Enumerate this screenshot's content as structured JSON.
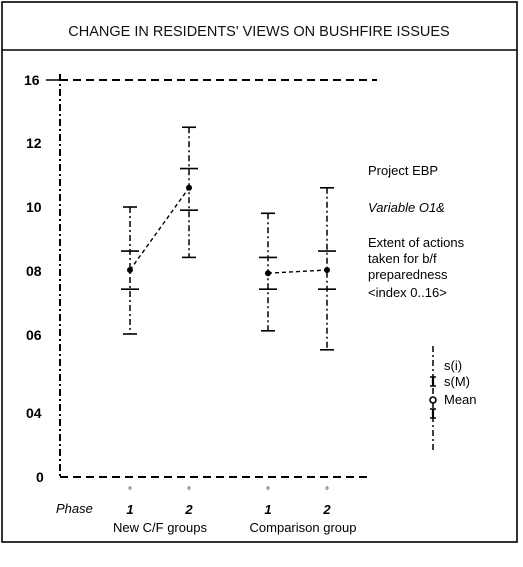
{
  "chart_data": {
    "type": "errorbar",
    "title": "CHANGE IN RESIDENTS' VIEWS ON BUSHFIRE ISSUES",
    "xlabel": "",
    "ylabel": "",
    "y_ticks": [
      "16",
      "12",
      "10",
      "08",
      "06",
      "04",
      "0"
    ],
    "phase_label": "Phase",
    "groups": [
      {
        "name": "New C/F groups",
        "points": [
          {
            "phase": "1",
            "mean": 8.0,
            "sm_low": 7.4,
            "sm_high": 8.6,
            "si_low": 6.0,
            "si_high": 10.0
          },
          {
            "phase": "2",
            "mean": 10.6,
            "sm_low": 9.9,
            "sm_high": 11.2,
            "si_low": 8.4,
            "si_high": 13.0
          }
        ]
      },
      {
        "name": "Comparison group",
        "points": [
          {
            "phase": "1",
            "mean": 7.9,
            "sm_low": 7.4,
            "sm_high": 8.4,
            "si_low": 6.1,
            "si_high": 9.8
          },
          {
            "phase": "2",
            "mean": 8.0,
            "sm_low": 7.4,
            "sm_high": 8.6,
            "si_low": 5.6,
            "si_high": 10.6
          }
        ]
      }
    ],
    "annotation": {
      "project": "Project EBP",
      "variable": "Variable O1&",
      "desc": [
        "Extent of actions",
        "taken for b/f",
        "preparedness",
        "<index 0..16>"
      ]
    },
    "legend": {
      "position": "right",
      "items": [
        "s(i)",
        "s(M)",
        "Mean"
      ]
    },
    "grid": false
  }
}
